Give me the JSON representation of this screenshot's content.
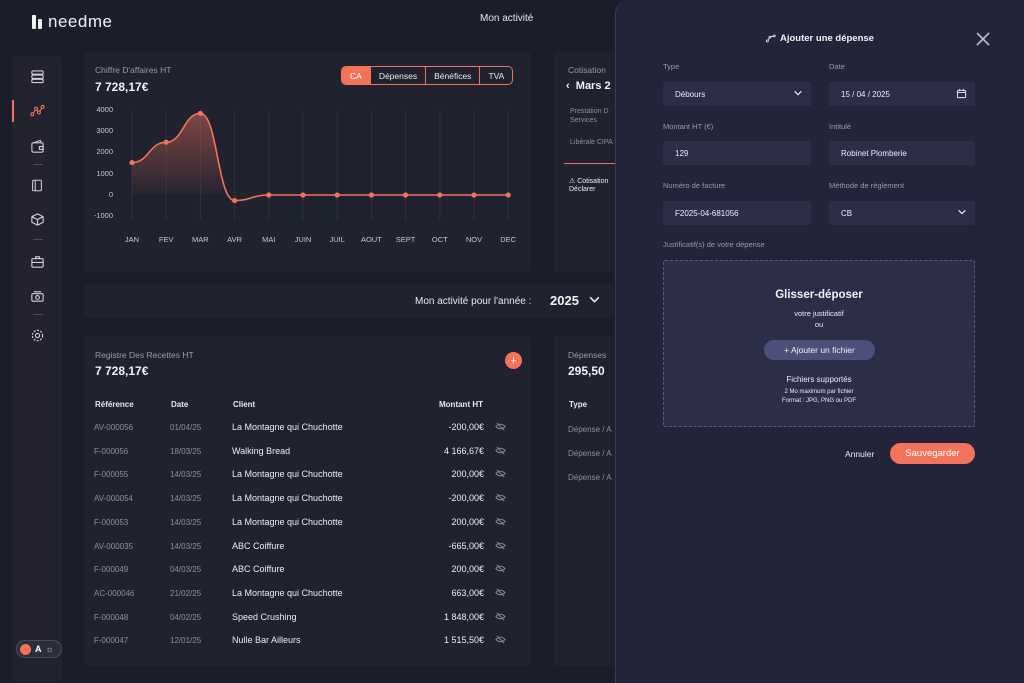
{
  "app": {
    "logo_text": "needme",
    "nav_title": "Mon activité"
  },
  "revenue_card": {
    "title": "Chiffre D'affaires HT",
    "amount": "7 728,17€",
    "tabs": [
      "CA",
      "Dépenses",
      "Bénéfices",
      "TVA"
    ],
    "active_tab": "CA"
  },
  "chart_data": {
    "type": "line",
    "categories": [
      "JAN",
      "FEV",
      "MAR",
      "AVR",
      "MAI",
      "JUIN",
      "JUIL",
      "AOUT",
      "SEPT",
      "OCT",
      "NOV",
      "DEC"
    ],
    "series": [
      {
        "values": [
          1520,
          2480,
          3840,
          -270,
          -10,
          -10,
          -10,
          -10,
          -10,
          -10,
          -10,
          -10
        ]
      }
    ],
    "yticks": [
      "4000",
      "3000",
      "2000",
      "1000",
      "0",
      "-1000"
    ],
    "ylim": [
      -1000,
      4000
    ],
    "grid": "vertical",
    "accent_color": "#f0735a"
  },
  "cotisations_card": {
    "title": "Cotisation",
    "month": "Mars 2",
    "line1": "Prestation D",
    "line1b": "Services",
    "line2": "Libérale CIPA",
    "warn1": "Cotisation",
    "warn2": "Déclarer"
  },
  "year_selector": {
    "label": "Mon activité pour l'année :",
    "year": "2025"
  },
  "register": {
    "title": "Registre Des Recettes HT",
    "amount": "7 728,17€",
    "add_label": "+",
    "headers": {
      "ref": "Référence",
      "date": "Date",
      "client": "Client",
      "amount": "Montant HT"
    },
    "rows": [
      {
        "ref": "AV-000056",
        "date": "01/04/25",
        "client": "La Montagne qui Chuchotte",
        "amount": "-200,00€"
      },
      {
        "ref": "F-000056",
        "date": "18/03/25",
        "client": "Walking Bread",
        "amount": "4 166,67€"
      },
      {
        "ref": "F-000055",
        "date": "14/03/25",
        "client": "La Montagne qui Chuchotte",
        "amount": "200,00€"
      },
      {
        "ref": "AV-000054",
        "date": "14/03/25",
        "client": "La Montagne qui Chuchotte",
        "amount": "-200,00€"
      },
      {
        "ref": "F-000053",
        "date": "14/03/25",
        "client": "La Montagne qui Chuchotte",
        "amount": "200,00€"
      },
      {
        "ref": "AV-000035",
        "date": "14/03/25",
        "client": "ABC Coiffure",
        "amount": "-665,00€"
      },
      {
        "ref": "F-000049",
        "date": "04/03/25",
        "client": "ABC Coiffure",
        "amount": "200,00€"
      },
      {
        "ref": "AC-000046",
        "date": "21/02/25",
        "client": "La Montagne qui Chuchotte",
        "amount": "663,00€"
      },
      {
        "ref": "F-000048",
        "date": "04/02/25",
        "client": "Speed Crushing",
        "amount": "1 848,00€"
      },
      {
        "ref": "F-000047",
        "date": "12/01/25",
        "client": "Nulle Bar Ailleurs",
        "amount": "1 515,50€"
      }
    ]
  },
  "expenses_card": {
    "title": "Dépenses",
    "amount": "295,50",
    "type_header": "Type",
    "rows": [
      "Dépense / A",
      "Dépense / A",
      "Dépense / A"
    ]
  },
  "panel": {
    "title": "Ajouter une dépense",
    "type_label": "Type",
    "type_value": "Débours",
    "date_label": "Date",
    "date_value": "15 / 04 / 2025",
    "amount_label": "Montant HT (€)",
    "amount_value": "129",
    "title_label": "Intitulé",
    "title_value": "Robinet Plomberie",
    "invoice_label": "Numéro de facture",
    "invoice_value": "F2025-04-681056",
    "method_label": "Méthode de règlement",
    "method_value": "CB",
    "proof_label": "Justificatif(s) de votre dépense",
    "drop_title": "Glisser-déposer",
    "drop_sub1": "votre justificatif",
    "drop_sub2": "ou",
    "add_file": "+ Ajouter un fichier",
    "supported_title": "Fichiers supportés",
    "supported_size": "2 Mo maximum par fichier",
    "supported_format": "Format : JPG, PNG ou PDF",
    "cancel": "Annuler",
    "save": "Sauvegarder"
  },
  "theme_toggle": {
    "label": "A"
  }
}
